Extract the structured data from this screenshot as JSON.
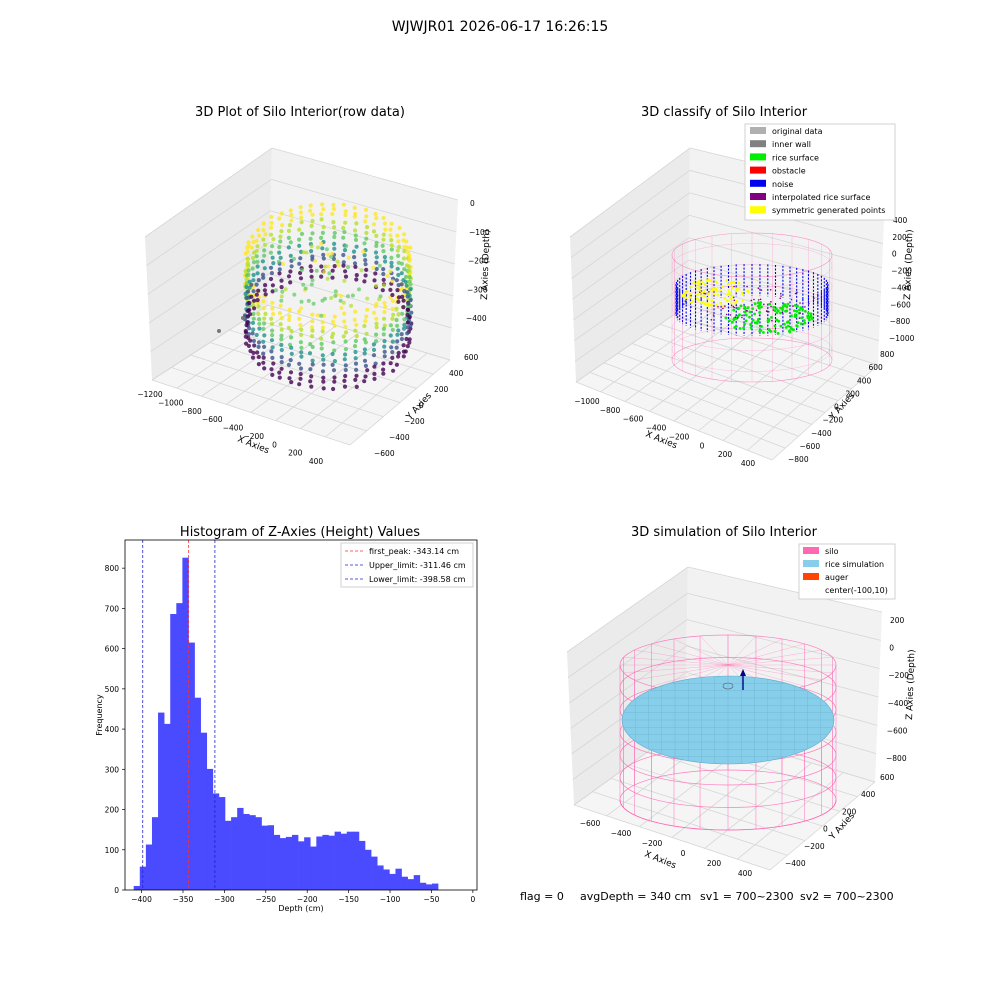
{
  "figure": {
    "suptitle": "WJWJR01 2026-06-17 16:26:15",
    "footer": {
      "flag": "flag = 0",
      "avg_depth": "avgDepth = 340 cm",
      "sv1": "sv1 = 700~2300",
      "sv2": "sv2 = 700~2300"
    }
  },
  "colors": {
    "bar": "#4a4aff",
    "peak_line": "#ff3030",
    "limit_line": "#2222cc",
    "silo_pink": "#ff69b4",
    "rice_blue": "#87ceeb",
    "auger_orange": "#ff4500",
    "inner_wall": "#808080",
    "original": "#b0b0b0",
    "rice_surface": "#00ee00",
    "obstacle": "#ff0000",
    "noise": "#0000ee",
    "interp": "#800080",
    "sym": "#ffff00"
  },
  "chart_data": [
    {
      "type": "scatter",
      "title": "3D Plot of Silo Interior(row data)",
      "xlabel": "X Axies",
      "ylabel": "Y Axies",
      "zlabel": "Z Axies (Depth)",
      "x_ticks": [
        "−1200",
        "−1000",
        "−800",
        "−600",
        "−400",
        "−200",
        "0",
        "200",
        "400"
      ],
      "y_ticks": [
        "−600",
        "−400",
        "−200",
        "0",
        "200",
        "400",
        "600"
      ],
      "z_ticks": [
        "0",
        "−100",
        "−200",
        "−300",
        "−400"
      ],
      "xlim": [
        -1200,
        450
      ],
      "ylim": [
        -650,
        650
      ],
      "zlim": [
        -430,
        0
      ],
      "colormap": "viridis"
    },
    {
      "type": "scatter",
      "title": "3D classify of Silo Interior",
      "xlabel": "X Axies",
      "ylabel": "Y Axies",
      "zlabel": "Z Axies (Depth)",
      "x_ticks": [
        "−1000",
        "−800",
        "−600",
        "−400",
        "−200",
        "0",
        "200",
        "400"
      ],
      "y_ticks": [
        "−800",
        "−600",
        "−400",
        "−200",
        "0",
        "200",
        "400",
        "600",
        "800"
      ],
      "z_ticks": [
        "400",
        "200",
        "0",
        "−200",
        "−400",
        "−600",
        "−800",
        "−1000"
      ],
      "legend": [
        "original data",
        "inner wall",
        "rice surface",
        "obstacle",
        "noise",
        "interpolated rice surface",
        "symmetric generated points"
      ],
      "legend_loc": "upper right"
    },
    {
      "type": "bar",
      "title": "Histogram of Z-Axies (Height) Values",
      "xlabel": "Depth (cm)",
      "ylabel": "Frequency",
      "xlim": [
        -420,
        5
      ],
      "ylim": [
        0,
        870
      ],
      "x_ticks": [
        "−400",
        "−350",
        "−300",
        "−250",
        "−200",
        "−150",
        "−100",
        "−50",
        "0"
      ],
      "y_ticks": [
        "0",
        "100",
        "200",
        "300",
        "400",
        "500",
        "600",
        "700",
        "800"
      ],
      "bin_start": -409.5,
      "bin_width": 7.35,
      "values": [
        10,
        58,
        113,
        181,
        441,
        413,
        686,
        713,
        826,
        615,
        478,
        391,
        301,
        240,
        231,
        172,
        181,
        204,
        189,
        186,
        181,
        160,
        161,
        137,
        129,
        132,
        137,
        121,
        131,
        108,
        133,
        137,
        135,
        145,
        140,
        145,
        145,
        122,
        100,
        83,
        61,
        51,
        40,
        53,
        33,
        27,
        37,
        18,
        14,
        16
      ],
      "vlines": [
        {
          "x": -343.14,
          "label": "first_peak: -343.14 cm",
          "kind": "peak"
        },
        {
          "x": -311.46,
          "label": "Upper_limit: -311.46 cm",
          "kind": "limit"
        },
        {
          "x": -398.58,
          "label": "Lower_limit: -398.58 cm",
          "kind": "limit"
        }
      ],
      "legend_loc": "upper right"
    },
    {
      "type": "surface",
      "title": "3D simulation of Silo Interior",
      "xlabel": "X Axies",
      "ylabel": "Y Axies",
      "zlabel": "Z Axies (Depth)",
      "x_ticks": [
        "−600",
        "−400",
        "−200",
        "0",
        "200",
        "400"
      ],
      "y_ticks": [
        "−400",
        "−200",
        "0",
        "200",
        "400",
        "600"
      ],
      "z_ticks": [
        "200",
        "0",
        "−200",
        "−400",
        "−600",
        "−800"
      ],
      "legend": [
        "silo",
        "rice simulation",
        "auger",
        "center(-100,10)"
      ],
      "legend_loc": "upper right"
    }
  ]
}
